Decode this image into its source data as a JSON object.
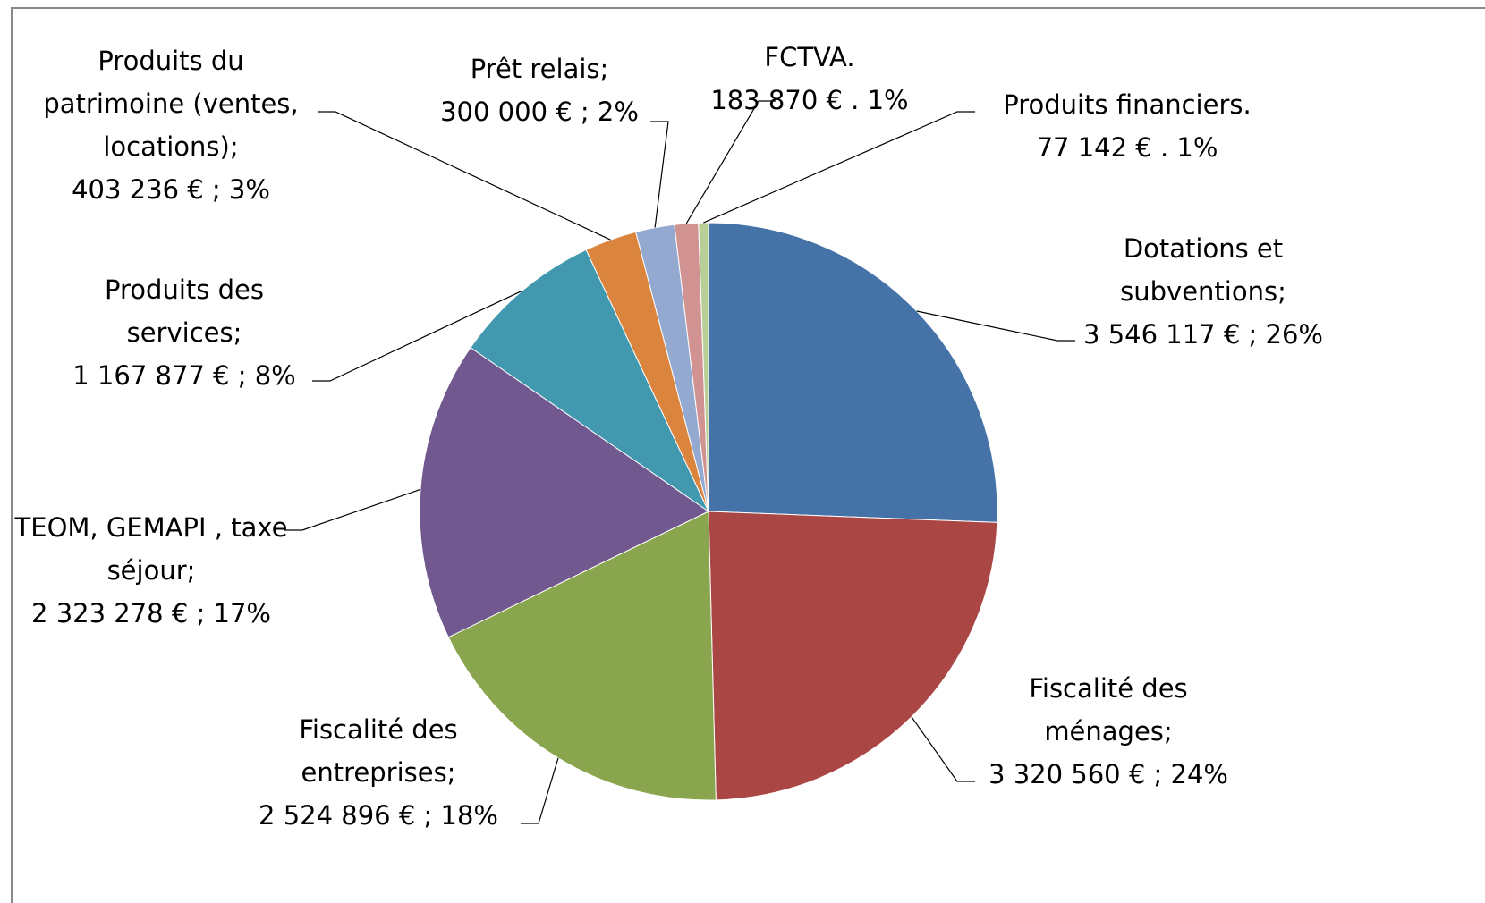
{
  "chart_data": {
    "type": "pie",
    "categories": [
      "Dotations et subventions;",
      "Fiscalité des ménages;",
      "Fiscalité des entreprises;",
      "TEOM, GEMAPI , taxe séjour;",
      "Produits des services;",
      "Produits du patrimoine (ventes, locations);",
      "Prêt relais;",
      "FCTVA.",
      "Produits financiers."
    ],
    "values": [
      3546117,
      3320560,
      2524896,
      2323278,
      1167877,
      403236,
      300000,
      183870,
      77142
    ],
    "value_labels": [
      "3 546 117 € ; 26%",
      "3 320 560 € ; 24%",
      "2 524 896 € ; 18%",
      "2 323 278 € ; 17%",
      "1 167 877 € ; 8%",
      "403 236 € ; 3%",
      "300 000 € ; 2%",
      "183 870 € . 1%",
      "77 142 € . 1%"
    ],
    "colors": [
      "#4572a7",
      "#aa4643",
      "#89a54e",
      "#71588f",
      "#4198af",
      "#db843d",
      "#93a9cf",
      "#d19392",
      "#b9cd96"
    ]
  }
}
